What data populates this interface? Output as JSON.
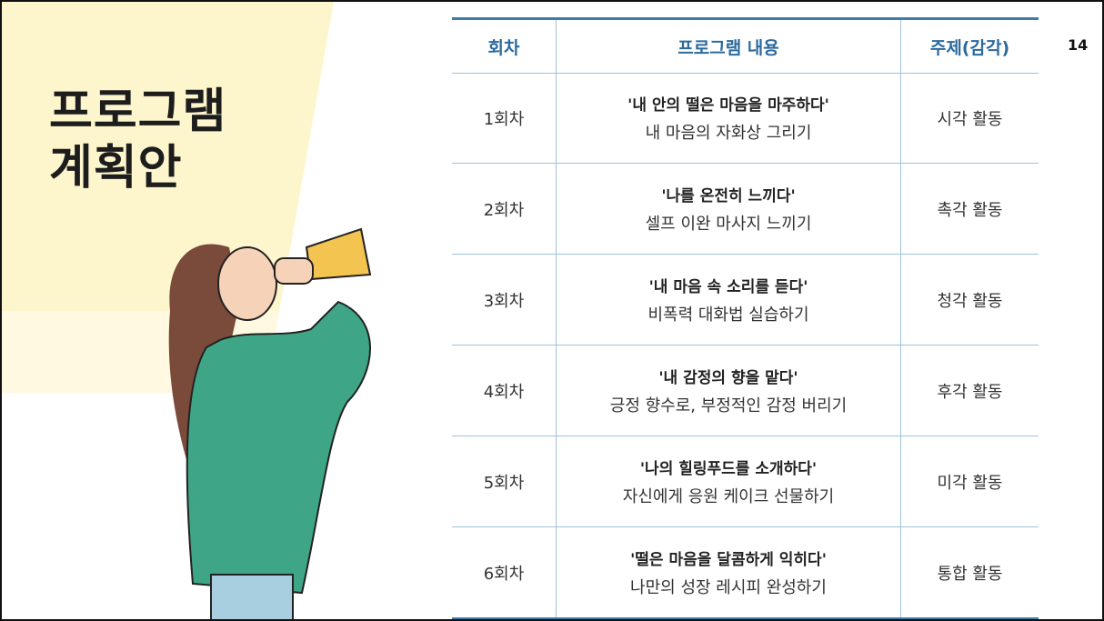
{
  "page_number": "14",
  "title": [
    "프로그램",
    "계획안"
  ],
  "table": {
    "header": [
      "회차",
      "프로그램 내용",
      "주제(감각)"
    ],
    "rows": [
      [
        "1회차",
        "'내 안의 떨은 마음을 마주하다'",
        "내 마음의 자화상 그리기",
        "시각 활동"
      ],
      [
        "2회차",
        "'나를 온전히 느끼다'",
        "셀프 이완 마사지 느끼기",
        "촉각 활동"
      ],
      [
        "3회차",
        "'내 마음 속 소리를 듣다'",
        "비폭력 대화법 실습하기",
        "청각 활동"
      ],
      [
        "4회차",
        "'내 감정의 향을 맡다'",
        "긍정 향수로, 부정적인 감정 버리기",
        "후각 활동"
      ],
      [
        "5회차",
        "'나의 힐링푸드를 소개하다'",
        "자신에게 응원 케이크 선물하기",
        "미각 활동"
      ],
      [
        "6회차",
        "'떨은 마음을 달콤하게 익히다'",
        "나만의 성장 레시피 완성하기",
        "통합 활동"
      ]
    ]
  }
}
